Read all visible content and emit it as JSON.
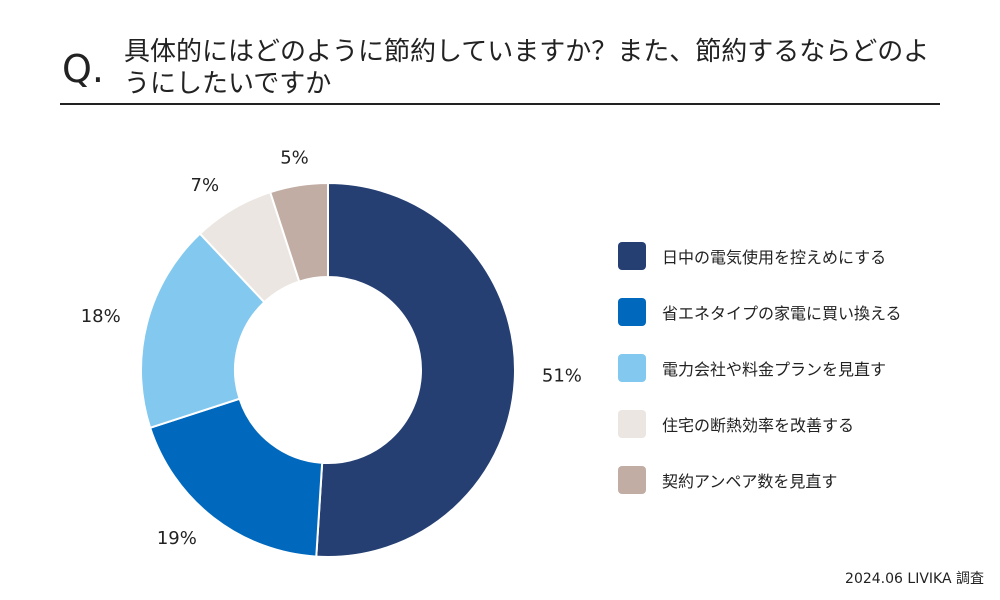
{
  "header": {
    "q_mark": "Q.",
    "title": "具体的にはどのように節約していますか？また、節約するならどのようにしたいですか"
  },
  "source": "2024.06 LIVIKA 調査",
  "chart_data": {
    "type": "pie",
    "donut": true,
    "title": "具体的にはどのように節約していますか？また、節約するならどのようにしたいですか",
    "categories": [
      "日中の電気使用を控えめにする",
      "省エネタイプの家電に買い換える",
      "電力会社や料金プランを見直す",
      "住宅の断熱効率を改善する",
      "契約アンペア数を見直す"
    ],
    "values": [
      51,
      19,
      18,
      7,
      5
    ],
    "value_labels": [
      "51%",
      "19%",
      "18%",
      "7%",
      "5%"
    ],
    "unit": "%",
    "colors": [
      "#253F73",
      "#0069BD",
      "#82C8EF",
      "#EBE6E1",
      "#C1ADA4"
    ],
    "legend_position": "right",
    "start_angle": "12 o'clock",
    "direction": "clockwise"
  }
}
